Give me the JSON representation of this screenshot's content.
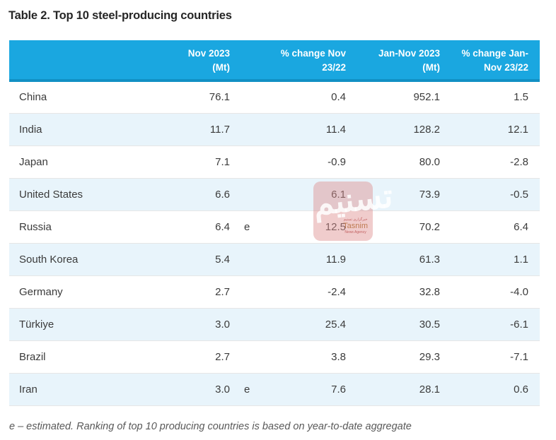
{
  "title": "Table 2. Top 10 steel-producing countries",
  "table": {
    "headers": {
      "country": "",
      "nov_mt": "Nov 2023\n(Mt)",
      "note": "",
      "pct_nov": "% change Nov\n23/22",
      "jan_nov_mt": "Jan-Nov 2023\n(Mt)",
      "pct_jan_nov": "% change Jan-\nNov 23/22"
    },
    "rows": [
      {
        "country": "China",
        "nov_mt": "76.1",
        "note": "",
        "pct_nov": "0.4",
        "jan_nov_mt": "952.1",
        "pct_jan_nov": "1.5"
      },
      {
        "country": "India",
        "nov_mt": "11.7",
        "note": "",
        "pct_nov": "11.4",
        "jan_nov_mt": "128.2",
        "pct_jan_nov": "12.1"
      },
      {
        "country": "Japan",
        "nov_mt": "7.1",
        "note": "",
        "pct_nov": "-0.9",
        "jan_nov_mt": "80.0",
        "pct_jan_nov": "-2.8"
      },
      {
        "country": "United States",
        "nov_mt": "6.6",
        "note": "",
        "pct_nov": "6.1",
        "jan_nov_mt": "73.9",
        "pct_jan_nov": "-0.5"
      },
      {
        "country": "Russia",
        "nov_mt": "6.4",
        "note": "e",
        "pct_nov": "12.5",
        "jan_nov_mt": "70.2",
        "pct_jan_nov": "6.4"
      },
      {
        "country": "South Korea",
        "nov_mt": "5.4",
        "note": "",
        "pct_nov": "11.9",
        "jan_nov_mt": "61.3",
        "pct_jan_nov": "1.1"
      },
      {
        "country": "Germany",
        "nov_mt": "2.7",
        "note": "",
        "pct_nov": "-2.4",
        "jan_nov_mt": "32.8",
        "pct_jan_nov": "-4.0"
      },
      {
        "country": "Türkiye",
        "nov_mt": "3.0",
        "note": "",
        "pct_nov": "25.4",
        "jan_nov_mt": "30.5",
        "pct_jan_nov": "-6.1"
      },
      {
        "country": "Brazil",
        "nov_mt": "2.7",
        "note": "",
        "pct_nov": "3.8",
        "jan_nov_mt": "29.3",
        "pct_jan_nov": "-7.1"
      },
      {
        "country": "Iran",
        "nov_mt": "3.0",
        "note": "e",
        "pct_nov": "7.6",
        "jan_nov_mt": "28.1",
        "pct_jan_nov": "0.6"
      }
    ]
  },
  "footnote": "e – estimated. Ranking of top 10 producing countries is based on year-to-date aggregate",
  "watermark": {
    "arabic": "تسنیم",
    "arabic_small": "خبرگزاری تسنیم",
    "latin": "Tasnim",
    "sub": "News Agency"
  },
  "colors": {
    "header_bg": "#1aa7e0",
    "header_border": "#1190c4",
    "header_text": "#ffffff",
    "row_alt_bg": "#e8f4fb",
    "body_text": "#3b3b3b"
  },
  "chart_data": {
    "type": "table",
    "title": "Table 2. Top 10 steel-producing countries",
    "columns": [
      "Country",
      "Nov 2023 (Mt)",
      "% change Nov 23/22",
      "Jan-Nov 2023 (Mt)",
      "% change Jan-Nov 23/22"
    ],
    "rows": [
      [
        "China",
        76.1,
        0.4,
        952.1,
        1.5
      ],
      [
        "India",
        11.7,
        11.4,
        128.2,
        12.1
      ],
      [
        "Japan",
        7.1,
        -0.9,
        80.0,
        -2.8
      ],
      [
        "United States",
        6.6,
        6.1,
        73.9,
        -0.5
      ],
      [
        "Russia",
        6.4,
        12.5,
        70.2,
        6.4
      ],
      [
        "South Korea",
        5.4,
        11.9,
        61.3,
        1.1
      ],
      [
        "Germany",
        2.7,
        -2.4,
        32.8,
        -4.0
      ],
      [
        "Türkiye",
        3.0,
        25.4,
        30.5,
        -6.1
      ],
      [
        "Brazil",
        2.7,
        3.8,
        29.3,
        -7.1
      ],
      [
        "Iran",
        3.0,
        7.6,
        28.1,
        0.6
      ]
    ],
    "estimated_rows": [
      "Russia",
      "Iran"
    ],
    "footnote": "e – estimated. Ranking of top 10 producing countries is based on year-to-date aggregate"
  }
}
